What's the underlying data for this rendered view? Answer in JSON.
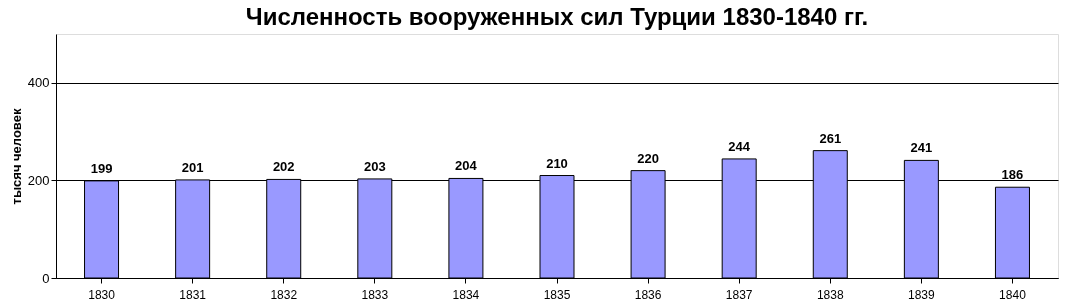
{
  "chart_data": {
    "type": "bar",
    "title": "Численность вооруженных сил Турции 1830-1840 гг.",
    "ylabel": "тысяч человек",
    "categories": [
      "1830",
      "1831",
      "1832",
      "1833",
      "1834",
      "1835",
      "1836",
      "1837",
      "1838",
      "1839",
      "1840"
    ],
    "values": [
      199,
      201,
      202,
      203,
      204,
      210,
      220,
      244,
      261,
      241,
      186
    ],
    "color": "#9999ff",
    "ylim": [
      0,
      500
    ],
    "yticks": [
      0,
      200,
      400
    ],
    "grid": "y",
    "data_labels": true
  }
}
